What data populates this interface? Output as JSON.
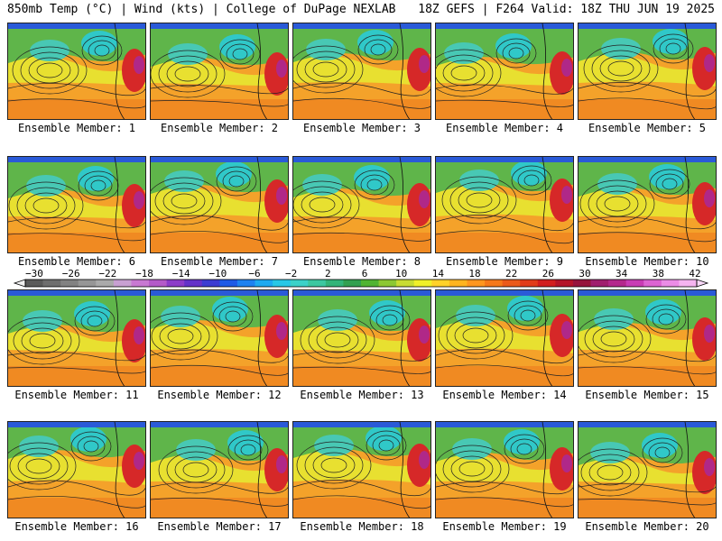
{
  "header": {
    "left": "850mb Temp (°C) | Wind (kts) | College of DuPage NEXLAB",
    "right": "18Z GEFS | F264 Valid: 18Z THU JUN 19 2025"
  },
  "label_prefix": "Ensemble Member: ",
  "panels": [
    1,
    2,
    3,
    4,
    5,
    6,
    7,
    8,
    9,
    10,
    11,
    12,
    13,
    14,
    15,
    16,
    17,
    18,
    19,
    20
  ],
  "colorbar": {
    "ticks": [
      "−30",
      "−26",
      "−22",
      "−18",
      "−14",
      "−10",
      "−6",
      "−2",
      "2",
      "6",
      "10",
      "14",
      "18",
      "22",
      "26",
      "30",
      "34",
      "38",
      "42"
    ],
    "colors": [
      "#5a5a5a",
      "#6e6e6e",
      "#828282",
      "#969696",
      "#aaaaaa",
      "#c8a0d2",
      "#c878d2",
      "#b45ac8",
      "#8c3cc8",
      "#6432c8",
      "#3c3cd2",
      "#1e5ae6",
      "#1e82f0",
      "#1eaaf0",
      "#28c8e6",
      "#3cd2c8",
      "#3cc8a0",
      "#32b478",
      "#32a050",
      "#50b432",
      "#8cc832",
      "#c8dc32",
      "#f0f028",
      "#ffd228",
      "#ffb41e",
      "#ff961e",
      "#f57819",
      "#eb5a19",
      "#e13c19",
      "#d21e1e",
      "#b41428",
      "#96143c",
      "#a01e6e",
      "#b4288c",
      "#c83cb4",
      "#dc64d2",
      "#eb8ce6",
      "#f5b4f0"
    ]
  }
}
